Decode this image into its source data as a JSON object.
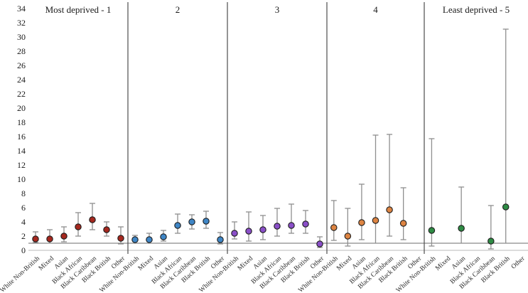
{
  "chart_data": {
    "type": "scatter",
    "subtype": "forest-errorbar",
    "title": "",
    "xlabel": "",
    "ylabel": "",
    "ylim": [
      0,
      34
    ],
    "ytick_step": 2,
    "ytick_labels": [
      "0",
      "2",
      "4",
      "6",
      "8",
      "10",
      "12",
      "14",
      "16",
      "18",
      "20",
      "22",
      "24",
      "26",
      "28",
      "30",
      "32",
      "34"
    ],
    "reference_line_y": 1,
    "grid": false,
    "legend_position": "none",
    "categories": [
      "White Non-British",
      "Mixed",
      "Asian",
      "Black African",
      "Black Caribbean",
      "Black British",
      "Other"
    ],
    "panels": [
      {
        "label": "Most deprived - 1",
        "color": "#a5281f",
        "points": [
          {
            "category": "White Non-British",
            "value": 1.6,
            "lo": 1.1,
            "hi": 2.6
          },
          {
            "category": "Mixed",
            "value": 1.6,
            "lo": 1.0,
            "hi": 2.9
          },
          {
            "category": "Asian",
            "value": 2.0,
            "lo": 1.2,
            "hi": 3.3
          },
          {
            "category": "Black African",
            "value": 3.3,
            "lo": 2.0,
            "hi": 5.3
          },
          {
            "category": "Black Caribbean",
            "value": 4.3,
            "lo": 2.9,
            "hi": 6.6
          },
          {
            "category": "Black British",
            "value": 2.9,
            "lo": 2.0,
            "hi": 4.0
          },
          {
            "category": "Other",
            "value": 1.7,
            "lo": 0.9,
            "hi": 3.3
          }
        ]
      },
      {
        "label": "2",
        "color": "#3f86c6",
        "points": [
          {
            "category": "White Non-British",
            "value": 1.5,
            "lo": 1.0,
            "hi": 2.1
          },
          {
            "category": "Mixed",
            "value": 1.5,
            "lo": 1.0,
            "hi": 2.4
          },
          {
            "category": "Asian",
            "value": 1.9,
            "lo": 1.3,
            "hi": 2.8
          },
          {
            "category": "Black African",
            "value": 3.5,
            "lo": 2.4,
            "hi": 5.1
          },
          {
            "category": "Black Caribbean",
            "value": 4.0,
            "lo": 3.0,
            "hi": 5.0
          },
          {
            "category": "Black British",
            "value": 4.1,
            "lo": 3.1,
            "hi": 5.5
          },
          {
            "category": "Other",
            "value": 1.5,
            "lo": 0.9,
            "hi": 2.5
          }
        ]
      },
      {
        "label": "3",
        "color": "#8a4fc8",
        "points": [
          {
            "category": "White Non-British",
            "value": 2.4,
            "lo": 1.6,
            "hi": 4.0
          },
          {
            "category": "Mixed",
            "value": 2.7,
            "lo": 1.3,
            "hi": 5.4
          },
          {
            "category": "Asian",
            "value": 2.9,
            "lo": 1.5,
            "hi": 4.9
          },
          {
            "category": "Black African",
            "value": 3.4,
            "lo": 2.0,
            "hi": 5.9
          },
          {
            "category": "Black Caribbean",
            "value": 3.5,
            "lo": 2.4,
            "hi": 6.5
          },
          {
            "category": "Black British",
            "value": 3.7,
            "lo": 2.4,
            "hi": 5.6
          },
          {
            "category": "Other",
            "value": 0.9,
            "lo": 0.4,
            "hi": 1.9
          }
        ]
      },
      {
        "label": "4",
        "color": "#dd8442",
        "points": [
          {
            "category": "White Non-British",
            "value": 3.2,
            "lo": 1.4,
            "hi": 7.0
          },
          {
            "category": "Mixed",
            "value": 2.0,
            "lo": 0.6,
            "hi": 5.9
          },
          {
            "category": "Asian",
            "value": 3.9,
            "lo": 1.5,
            "hi": 9.3
          },
          {
            "category": "Black African",
            "value": 4.2,
            "lo": 1.0,
            "hi": 16.2
          },
          {
            "category": "Black Caribbean",
            "value": 5.7,
            "lo": 2.0,
            "hi": 16.3
          },
          {
            "category": "Black British",
            "value": 3.8,
            "lo": 1.5,
            "hi": 8.8
          },
          {
            "category": "Other",
            "value": null,
            "lo": null,
            "hi": null
          }
        ]
      },
      {
        "label": "Least deprived - 5",
        "color": "#2e8b44",
        "points": [
          {
            "category": "White Non-British",
            "value": 2.8,
            "lo": 0.6,
            "hi": 15.7
          },
          {
            "category": "Mixed",
            "value": null,
            "lo": null,
            "hi": null
          },
          {
            "category": "Asian",
            "value": 3.1,
            "lo": 1.0,
            "hi": 8.9
          },
          {
            "category": "Black African",
            "value": null,
            "lo": null,
            "hi": null
          },
          {
            "category": "Black Caribbean",
            "value": 1.3,
            "lo": 0.2,
            "hi": 6.3
          },
          {
            "category": "Black British",
            "value": 6.1,
            "lo": 1.0,
            "hi": 31.1
          },
          {
            "category": "Other",
            "value": null,
            "lo": null,
            "hi": null
          }
        ]
      }
    ],
    "colors": {
      "tick_text": "#1a1a1a",
      "category_text": "#2b2b2b",
      "panel_divider": "#4d4d4d",
      "reference_line": "#6e6e6e",
      "baseline": "#c8c8c8",
      "errorbar": "#8f8f8f",
      "point_outline": "#1c1c1c"
    }
  }
}
